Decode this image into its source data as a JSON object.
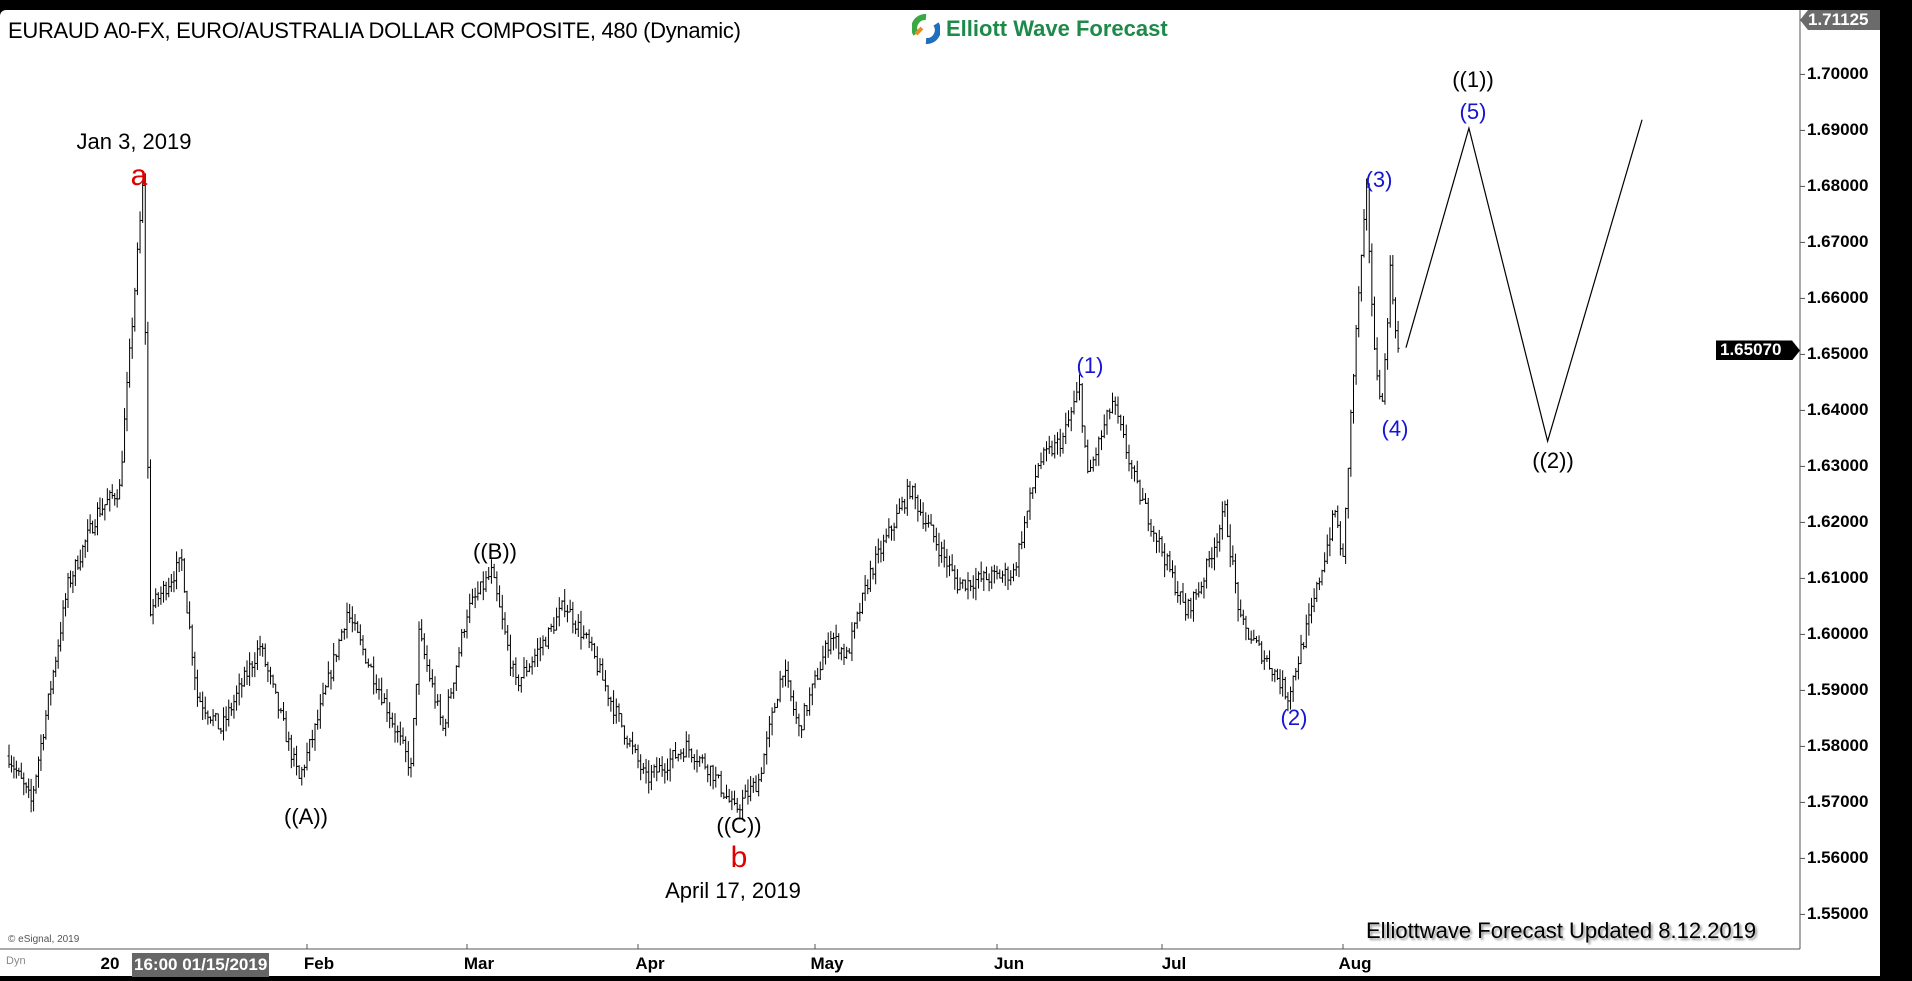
{
  "header": {
    "title": "EURAUD A0-FX, EURO/AUSTRALIA DOLLAR COMPOSITE, 480 (Dynamic)",
    "logo_text": "Elliott Wave Forecast"
  },
  "footer": {
    "updated": "Elliottwave Forecast  Updated 8.12.2019",
    "copyright": "© eSignal, 2019",
    "dyn": "Dyn",
    "cursor_time": "16:00 01/15/2019",
    "year_label": "20"
  },
  "colors": {
    "bars": "#000000",
    "wave_blue": "#1414d2",
    "wave_red": "#e00000",
    "logo_green": "#1d8a4a",
    "last_price_box": "#000000",
    "top_price_box": "#6b6b6b"
  },
  "chart_data": {
    "type": "ohlc-bar",
    "symbol": "EURAUD",
    "interval": "480",
    "y_ticks": [
      "1.70000",
      "1.69000",
      "1.68000",
      "1.67000",
      "1.66000",
      "1.65000",
      "1.64000",
      "1.63000",
      "1.62000",
      "1.61000",
      "1.60000",
      "1.59000",
      "1.58000",
      "1.57000",
      "1.56000",
      "1.55000"
    ],
    "ylim": [
      1.545,
      1.71125
    ],
    "top_price": "1.71125",
    "last_price": "1.65070",
    "x_ticks": [
      "Feb",
      "Mar",
      "Apr",
      "May",
      "Jun",
      "Jul",
      "Aug"
    ],
    "price_path": [
      [
        "2018-12-10",
        1.5783
      ],
      [
        "2018-12-13",
        1.57
      ],
      [
        "2018-12-20",
        1.6088
      ],
      [
        "2018-12-26",
        1.6218
      ],
      [
        "2018-12-31",
        1.626
      ],
      [
        "2019-01-03",
        1.6795
      ],
      [
        "2019-01-04",
        1.6044
      ],
      [
        "2019-01-10",
        1.613
      ],
      [
        "2019-01-14",
        1.589
      ],
      [
        "2019-01-17",
        1.583
      ],
      [
        "2019-01-24",
        1.598
      ],
      [
        "2019-01-31",
        1.574
      ],
      [
        "2019-02-04",
        1.583
      ],
      [
        "2019-02-08",
        1.604
      ],
      [
        "2019-02-15",
        1.587
      ],
      [
        "2019-02-20",
        1.576
      ],
      [
        "2019-02-21",
        1.6
      ],
      [
        "2019-02-26",
        1.583
      ],
      [
        "2019-03-01",
        1.604
      ],
      [
        "2019-03-06",
        1.611
      ],
      [
        "2019-03-11",
        1.591
      ],
      [
        "2019-03-15",
        1.6
      ],
      [
        "2019-03-19",
        1.6055
      ],
      [
        "2019-03-22",
        1.598
      ],
      [
        "2019-03-27",
        1.587
      ],
      [
        "2019-04-02",
        1.574
      ],
      [
        "2019-04-09",
        1.58
      ],
      [
        "2019-04-12",
        1.576
      ],
      [
        "2019-04-17",
        1.5685
      ],
      [
        "2019-04-22",
        1.574
      ],
      [
        "2019-04-25",
        1.594
      ],
      [
        "2019-04-29",
        1.583
      ],
      [
        "2019-05-03",
        1.6
      ],
      [
        "2019-05-07",
        1.596
      ],
      [
        "2019-05-10",
        1.611
      ],
      [
        "2019-05-17",
        1.626
      ],
      [
        "2019-05-20",
        1.623
      ],
      [
        "2019-05-27",
        1.609
      ],
      [
        "2019-06-05",
        1.611
      ],
      [
        "2019-06-10",
        1.6305
      ],
      [
        "2019-06-13",
        1.635
      ],
      [
        "2019-06-17",
        1.644
      ],
      [
        "2019-06-18",
        1.628
      ],
      [
        "2019-06-21",
        1.6415
      ],
      [
        "2019-06-26",
        1.626
      ],
      [
        "2019-07-04",
        1.604
      ],
      [
        "2019-07-08",
        1.609
      ],
      [
        "2019-07-11",
        1.622
      ],
      [
        "2019-07-15",
        1.602
      ],
      [
        "2019-07-19",
        1.594
      ],
      [
        "2019-07-23",
        1.589
      ],
      [
        "2019-07-26",
        1.604
      ],
      [
        "2019-07-31",
        1.622
      ],
      [
        "2019-08-01",
        1.613
      ],
      [
        "2019-08-02",
        1.639
      ],
      [
        "2019-08-05",
        1.661
      ],
      [
        "2019-08-06",
        1.6785
      ],
      [
        "2019-08-07",
        1.65
      ],
      [
        "2019-08-08",
        1.641
      ],
      [
        "2019-08-09",
        1.665
      ],
      [
        "2019-08-12",
        1.6507
      ]
    ],
    "forecast_path": [
      [
        "2019-08-13",
        1.6512
      ],
      [
        "2019-08-23",
        1.6904
      ],
      [
        "2019-09-06",
        1.6345
      ],
      [
        "2019-09-24",
        1.6919
      ]
    ],
    "annotations": [
      {
        "text": "Jan 3, 2019",
        "color": "black"
      },
      {
        "text": "a",
        "color": "red"
      },
      {
        "text": "((A))",
        "color": "black"
      },
      {
        "text": "((B))",
        "color": "black"
      },
      {
        "text": "((C))",
        "color": "black"
      },
      {
        "text": "b",
        "color": "red"
      },
      {
        "text": "April 17, 2019",
        "color": "black"
      },
      {
        "text": "(1)",
        "color": "blue"
      },
      {
        "text": "(2)",
        "color": "blue"
      },
      {
        "text": "(3)",
        "color": "blue"
      },
      {
        "text": "(4)",
        "color": "blue"
      },
      {
        "text": "((1))",
        "color": "black"
      },
      {
        "text": "(5)",
        "color": "blue"
      },
      {
        "text": "((2))",
        "color": "black"
      }
    ]
  }
}
